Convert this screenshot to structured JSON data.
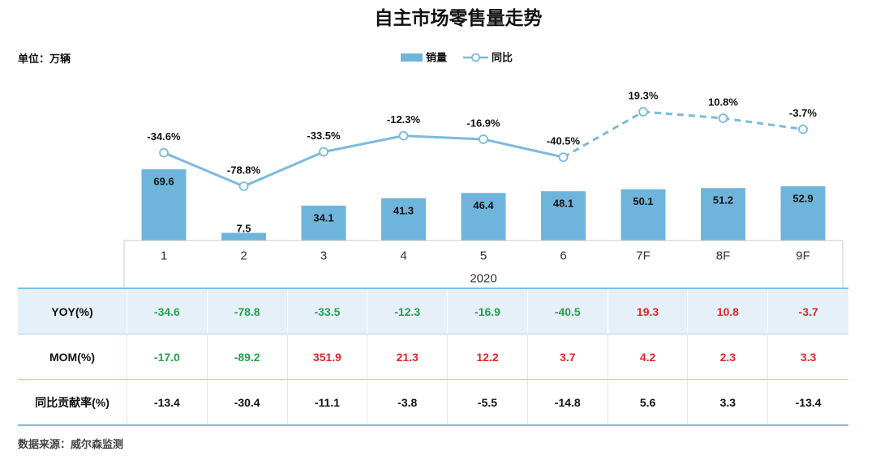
{
  "source_note": "数据来源：威尔森监测",
  "colors": {
    "bar": "#6fb5db",
    "line": "#7cbadc",
    "green": "#22a24f",
    "red": "#e3262b",
    "black": "#111111"
  },
  "chart_data": {
    "type": "bar",
    "title": "自主市场零售量走势",
    "unit_label": "单位：万辆",
    "categories": [
      "1",
      "2",
      "3",
      "4",
      "5",
      "6",
      "7F",
      "8F",
      "9F"
    ],
    "group_label": "2020",
    "legend_position": "top",
    "grid": false,
    "series": [
      {
        "name": "销量",
        "type": "bar",
        "values": [
          69.6,
          7.5,
          34.1,
          41.3,
          46.4,
          48.1,
          50.1,
          51.2,
          52.9
        ]
      },
      {
        "name": "同比",
        "type": "line",
        "value_suffix": "%",
        "values": [
          -34.6,
          -78.8,
          -33.5,
          -12.3,
          -16.9,
          -40.5,
          19.3,
          10.8,
          -3.7
        ],
        "segment_styles": [
          "solid",
          "solid",
          "solid",
          "solid",
          "solid",
          "dashed",
          "dashed",
          "dashed"
        ]
      }
    ]
  },
  "table": {
    "rows": [
      {
        "label": "YOY(%)",
        "values": [
          "-34.6",
          "-78.8",
          "-33.5",
          "-12.3",
          "-16.9",
          "-40.5",
          "19.3",
          "10.8",
          "-3.7"
        ],
        "text_colors": [
          "green",
          "green",
          "green",
          "green",
          "green",
          "green",
          "red",
          "red",
          "red"
        ]
      },
      {
        "label": "MOM(%)",
        "values": [
          "-17.0",
          "-89.2",
          "351.9",
          "21.3",
          "12.2",
          "3.7",
          "4.2",
          "2.3",
          "3.3"
        ],
        "text_colors": [
          "green",
          "green",
          "red",
          "red",
          "red",
          "red",
          "red",
          "red",
          "red"
        ]
      },
      {
        "label": "同比贡献率(%)",
        "values": [
          "-13.4",
          "-30.4",
          "-11.1",
          "-3.8",
          "-5.5",
          "-14.8",
          "5.6",
          "3.3",
          "-13.4"
        ],
        "text_colors": [
          "black",
          "black",
          "black",
          "black",
          "black",
          "black",
          "black",
          "black",
          "black"
        ]
      }
    ]
  }
}
